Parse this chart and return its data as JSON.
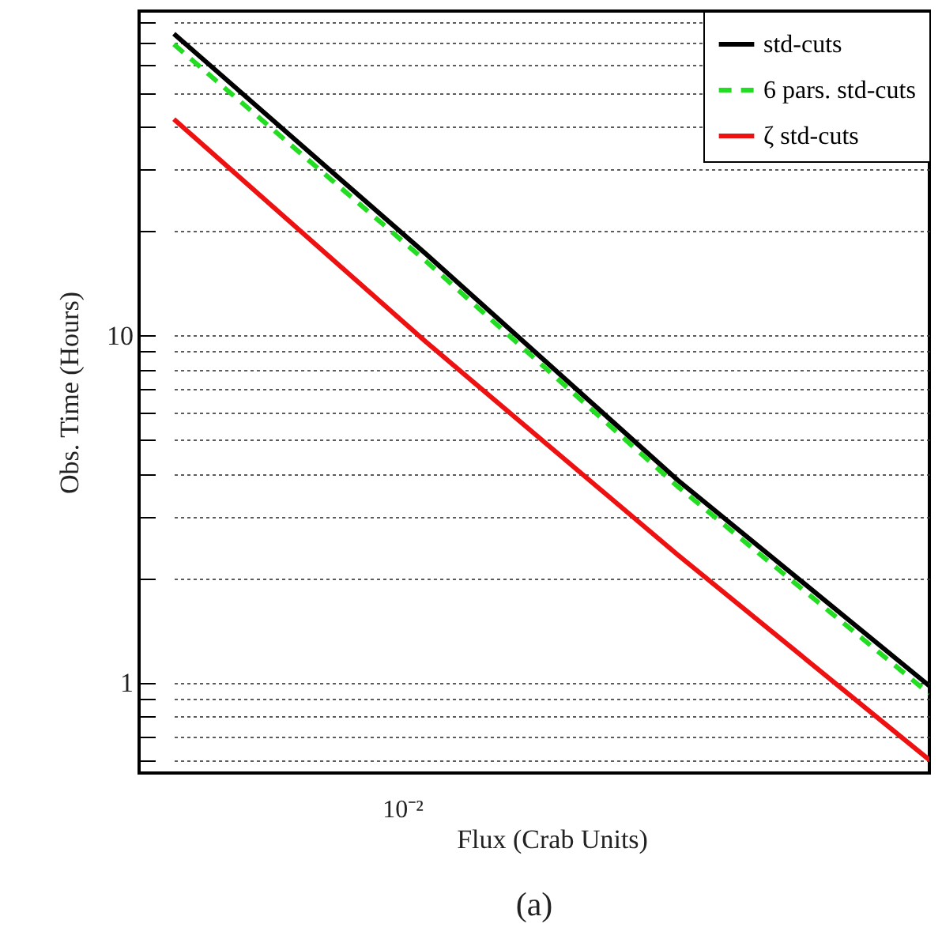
{
  "chart_data": {
    "type": "line",
    "xlabel": "Flux (Crab Units)",
    "ylabel": "Obs. Time (Hours)",
    "annotations": [
      "10⁻²",
      "(a)"
    ],
    "categories": [
      null,
      null,
      null,
      null
    ],
    "series": [
      {
        "name": "std-cuts",
        "color": "#000000",
        "line_style": "solid",
        "values": [
          74,
          17.2,
          3.84,
          0.98
        ]
      },
      {
        "name": "6 pars. std-cuts",
        "color": "#22dd22",
        "line_style": "dashed",
        "values": [
          69,
          16.4,
          3.68,
          0.93
        ]
      },
      {
        "name": "ζ std-cuts",
        "color": "#ee1111",
        "line_style": "solid",
        "values": [
          42,
          9.6,
          2.34,
          0.6
        ]
      }
    ],
    "log": "y",
    "ylim": [
      0.55,
      86
    ],
    "yticks": [
      {
        "value": 0.6,
        "label": null
      },
      {
        "value": 0.7,
        "label": null
      },
      {
        "value": 0.8,
        "label": null
      },
      {
        "value": 0.9,
        "label": null
      },
      {
        "value": 1,
        "label": "1"
      },
      {
        "value": 2,
        "label": null
      },
      {
        "value": 3,
        "label": null
      },
      {
        "value": 4,
        "label": null
      },
      {
        "value": 5,
        "label": null
      },
      {
        "value": 6,
        "label": null
      },
      {
        "value": 7,
        "label": null
      },
      {
        "value": 8,
        "label": null
      },
      {
        "value": 9,
        "label": null
      },
      {
        "value": 10,
        "label": "10"
      },
      {
        "value": 20,
        "label": null
      },
      {
        "value": 30,
        "label": null
      },
      {
        "value": 40,
        "label": null
      },
      {
        "value": 50,
        "label": null
      },
      {
        "value": 60,
        "label": null
      },
      {
        "value": 70,
        "label": null
      },
      {
        "value": 80,
        "label": null
      }
    ],
    "grid": "y",
    "legend": "top right",
    "marker": "none",
    "tick_labels": "y"
  }
}
